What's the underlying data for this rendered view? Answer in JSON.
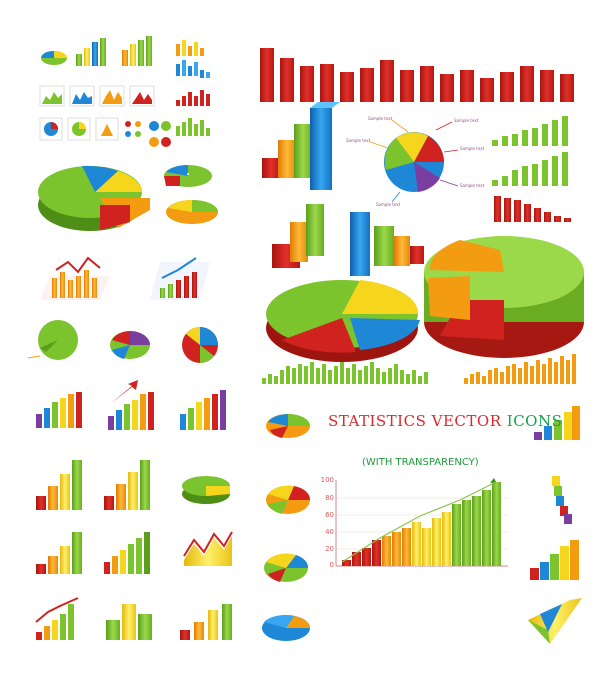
{
  "title_part1": "STATISTICS VECTOR",
  "title_part2": "ICONS",
  "subtitle": "(WITH TRANSPARENCY)",
  "pie_labels": [
    "Sample text",
    "Sample text",
    "Sample text",
    "Sample text",
    "Sample text",
    "Sample text"
  ],
  "chart_axis_ticks": [
    "100",
    "80",
    "60",
    "40",
    "20",
    "0"
  ],
  "colors": {
    "red": "#d0221f",
    "orange": "#f39c12",
    "yellow": "#f6d51d",
    "green": "#7cc42d",
    "blue": "#1e88d6",
    "purple": "#7a3ea0"
  }
}
